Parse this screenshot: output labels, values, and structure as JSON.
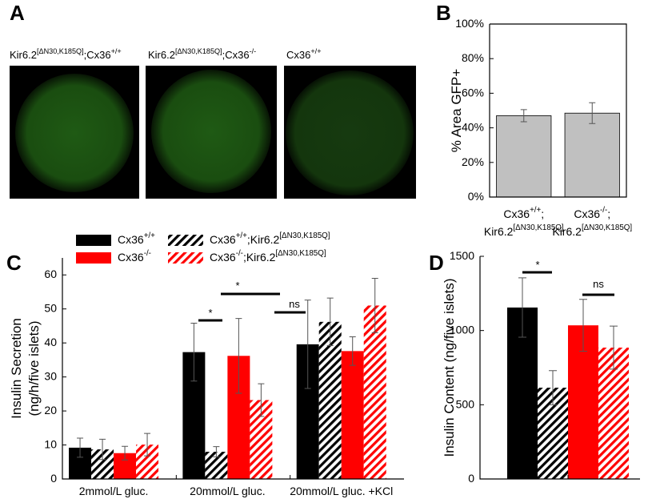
{
  "panel_a": {
    "label": "A",
    "images": [
      {
        "caption": "Kir6.2[ΔN30,K185Q];Cx36+/+"
      },
      {
        "caption": "Kir6.2[ΔN30,K185Q];Cx36-/-"
      },
      {
        "caption": "Cx36+/+"
      }
    ]
  },
  "chart_data": [
    {
      "type": "bar",
      "label": "B",
      "ylabel": [
        "% Area GFP+"
      ],
      "categories": [
        [
          "Cx36+/+;",
          "Kir6.2[ΔN30,K185Q]"
        ],
        [
          "Cx36-/-;",
          "Kir6.2[ΔN30,K185Q]"
        ]
      ],
      "values": [
        47,
        48.5
      ],
      "errors": [
        3.5,
        6
      ],
      "color": "#c0c0c0",
      "ylim": [
        0,
        100
      ],
      "yticks": [
        {
          "value": 0,
          "label": "0%"
        },
        {
          "value": 20,
          "label": "20%"
        },
        {
          "value": 40,
          "label": "40%"
        },
        {
          "value": 60,
          "label": "60%"
        },
        {
          "value": 80,
          "label": "80%"
        },
        {
          "value": 100,
          "label": "100%"
        }
      ]
    },
    {
      "type": "grouped-bar",
      "label": "C",
      "ylabel": [
        "Insulin Secretion",
        "(ng/h/five islets)"
      ],
      "categories": [
        "2mmol/L gluc.",
        "20mmol/L gluc.",
        "20mmol/L gluc. +KCl"
      ],
      "series": [
        {
          "name": "Cx36+/+",
          "color": "#000000",
          "hatched": false,
          "values": [
            9.2,
            37.3,
            39.6
          ],
          "errors": [
            2.8,
            8.5,
            13
          ]
        },
        {
          "name": "Cx36-/-",
          "color": "#ff0000",
          "hatched": false,
          "values": [
            7.6,
            36.2,
            37.6
          ],
          "errors": [
            2,
            11,
            4.2
          ]
        },
        {
          "name": "Cx36+/+;Kir6.2[ΔN30,K185Q]",
          "color": "#000000",
          "hatched": true,
          "values": [
            8.7,
            8.0,
            46.2
          ],
          "errors": [
            3,
            1.5,
            7
          ]
        },
        {
          "name": "Cx36-/-;Kir6.2[ΔN30,K185Q]",
          "color": "#ff0000",
          "hatched": true,
          "values": [
            10.1,
            23.2,
            51.0
          ],
          "errors": [
            3.3,
            4.8,
            8
          ]
        }
      ],
      "order": [
        0,
        2,
        1,
        3
      ],
      "ylim": [
        0,
        65
      ],
      "yticks": [
        0,
        10,
        20,
        30,
        40,
        50,
        60
      ],
      "annotations": [
        {
          "text": "*"
        },
        {
          "text": "*"
        },
        {
          "text": "ns"
        }
      ]
    },
    {
      "type": "bar",
      "label": "D",
      "ylabel": [
        "Insulin Content (ng/five islets)"
      ],
      "values": [
        1155,
        615,
        1035,
        885
      ],
      "errors": [
        200,
        115,
        175,
        145
      ],
      "colors": [
        "#000000",
        "#000000",
        "#ff0000",
        "#ff0000"
      ],
      "hatched": [
        false,
        true,
        false,
        true
      ],
      "ylim": [
        0,
        1500
      ],
      "yticks": [
        0,
        500,
        1000,
        1500
      ],
      "annotations": [
        {
          "text": "*"
        },
        {
          "text": "ns"
        }
      ]
    }
  ]
}
